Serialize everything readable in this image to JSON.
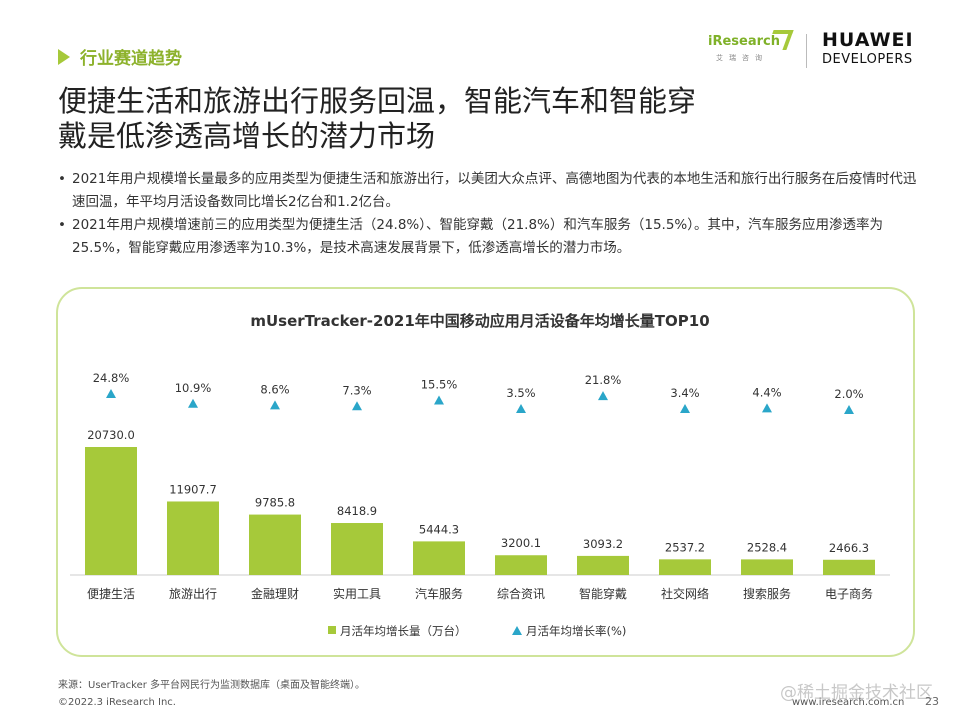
{
  "section": {
    "label": "行业赛道趋势"
  },
  "logos": {
    "iresearch_main": "iResearch",
    "iresearch_sub": "艾瑞咨询",
    "huawei_line1": "HUAWEI",
    "huawei_line2": "DEVELOPERS"
  },
  "title": {
    "line1": "便捷生活和旅游出行服务回温，智能汽车和智能穿",
    "line2": "戴是低渗透高增长的潜力市场"
  },
  "bullets": [
    "2021年用户规模增长量最多的应用类型为便捷生活和旅游出行，以美团大众点评、高德地图为代表的本地生活和旅行出行服务在后疫情时代迅速回温，年平均月活设备数同比增长2亿台和1.2亿台。",
    "2021年用户规模增速前三的应用类型为便捷生活（24.8%）、智能穿戴（21.8%）和汽车服务（15.5%）。其中，汽车服务应用渗透率为25.5%，智能穿戴应用渗透率为10.3%，是技术高速发展背景下，低渗透高增长的潜力市场。"
  ],
  "chart_data": {
    "type": "bar",
    "title": "mUserTracker-2021年中国移动应用月活设备年均增长量TOP10",
    "categories": [
      "便捷生活",
      "旅游出行",
      "金融理财",
      "实用工具",
      "汽车服务",
      "综合资讯",
      "智能穿戴",
      "社交网络",
      "搜索服务",
      "电子商务"
    ],
    "series": [
      {
        "name": "月活年均增长量（万台）",
        "kind": "bar",
        "values": [
          20730.0,
          11907.7,
          9785.8,
          8418.9,
          5444.3,
          3200.1,
          3093.2,
          2537.2,
          2528.4,
          2466.3
        ],
        "labels": [
          "20730.0",
          "11907.7",
          "9785.8",
          "8418.9",
          "5444.3",
          "3200.1",
          "3093.2",
          "2537.2",
          "2528.4",
          "2466.3"
        ],
        "color": "#a6c93a"
      },
      {
        "name": "月活年均增长率(%)",
        "kind": "marker",
        "values": [
          24.8,
          10.9,
          8.6,
          7.3,
          15.5,
          3.5,
          21.8,
          3.4,
          4.4,
          2.0
        ],
        "labels": [
          "24.8%",
          "10.9%",
          "8.6%",
          "7.3%",
          "15.5%",
          "3.5%",
          "21.8%",
          "3.4%",
          "4.4%",
          "2.0%"
        ],
        "color": "#2aa6c9"
      }
    ],
    "legend": "bottom-center",
    "grid": false
  },
  "footer": {
    "source": "来源：UserTracker 多平台网民行为监测数据库（桌面及智能终端）。",
    "copyright": "©2022.3 iResearch Inc.",
    "url": "www.iresearch.com.cn",
    "page": "23",
    "watermark": "@稀土掘金技术社区"
  }
}
